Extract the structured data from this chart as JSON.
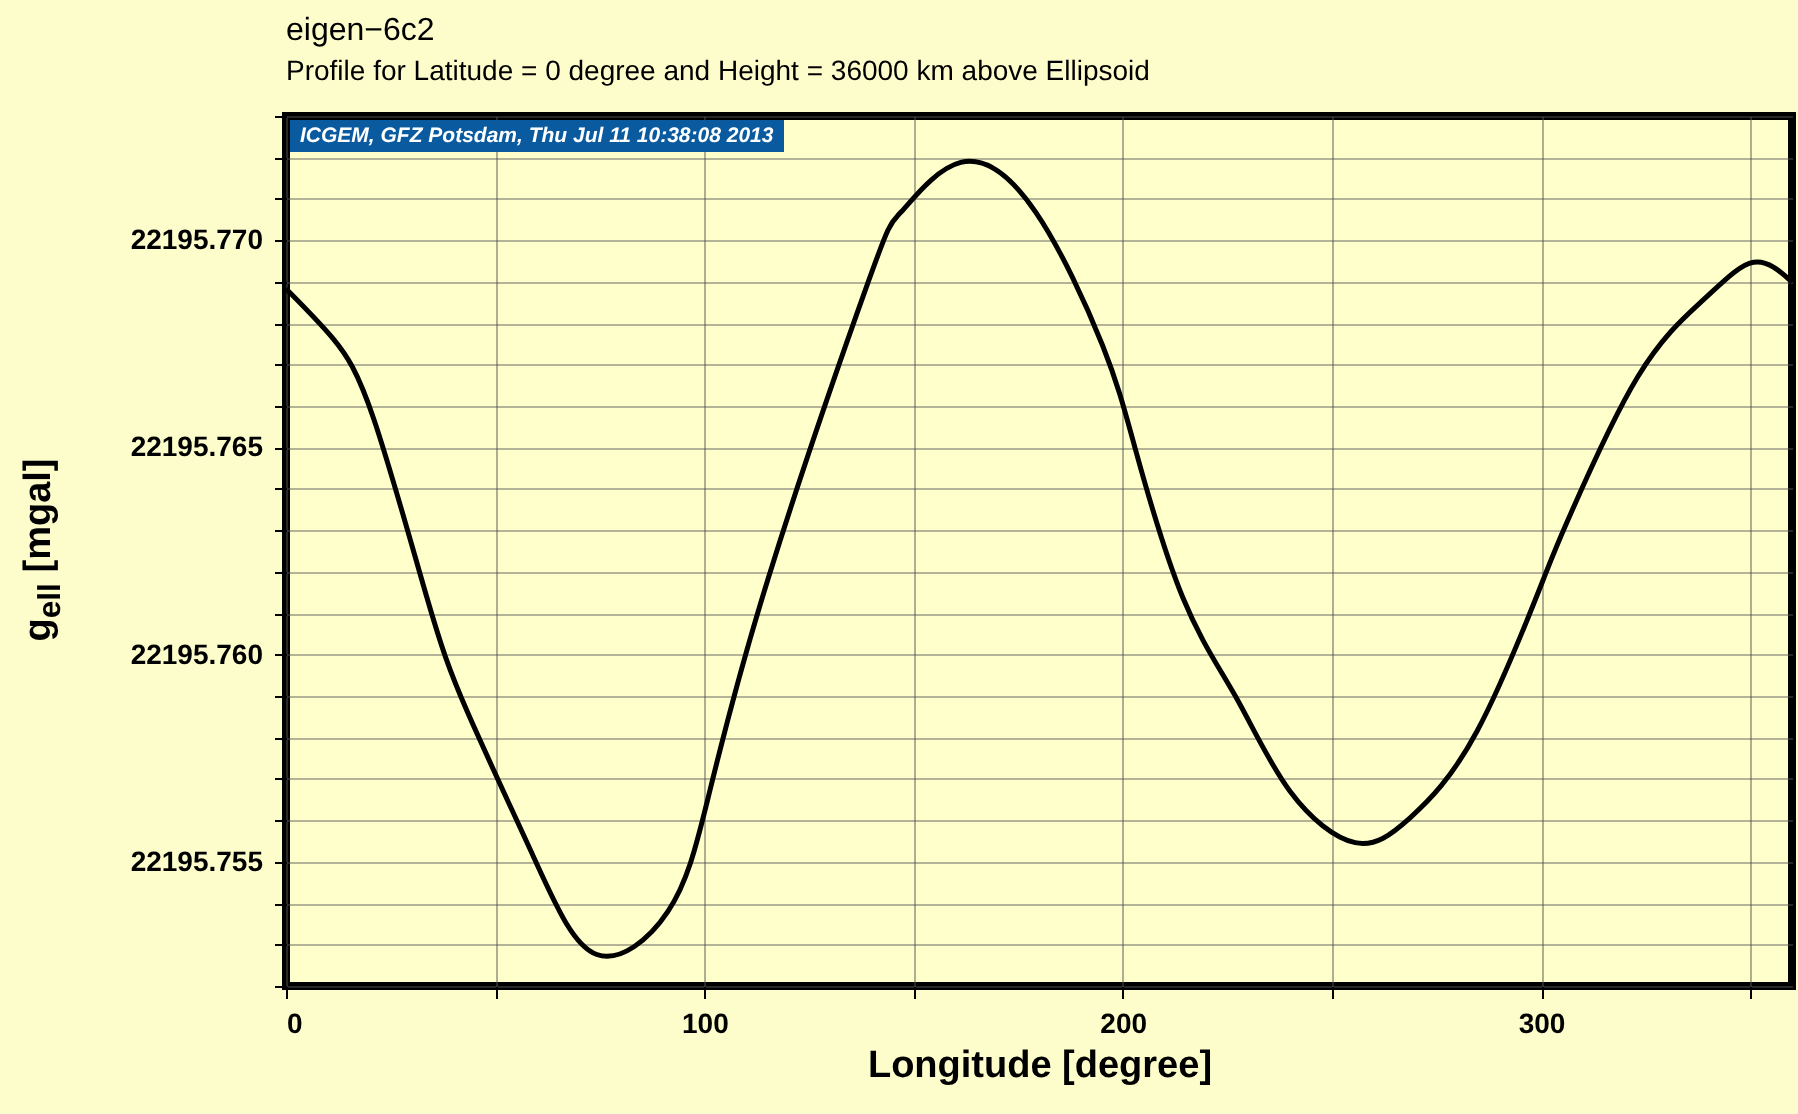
{
  "chart_data": {
    "type": "line",
    "title": "eigen−6c2",
    "subtitle": "Profile for Latitude = 0 degree and Height = 36000 km above Ellipsoid",
    "xlabel": "Longitude [degree]",
    "ylabel": "g$_{ell}$ [mgal]",
    "annotations": [
      "ICGEM, GFZ Potsdam, Thu Jul 11 10:38:08 2013"
    ],
    "x": [
      0,
      11.3,
      21,
      33.7,
      43.3,
      59.3,
      74.3,
      91.3,
      100.9,
      115.3,
      139.2,
      147.2,
      161.3,
      179.2,
      195.2,
      203.2,
      214.4,
      227.2,
      240,
      255.6,
      268.7,
      284.7,
      300.7,
      307.1,
      323.1,
      339.1,
      350.8,
      360
    ],
    "series": [
      {
        "color": "#000000",
        "values": [
          22195.76883,
          22195.76762,
          22195.76568,
          22195.76137,
          22195.75863,
          22195.75509,
          22195.75276,
          22195.7538,
          22195.75654,
          22195.76185,
          22195.769,
          22195.7707,
          22195.77188,
          22195.77068,
          22195.76746,
          22195.7649,
          22195.76137,
          22195.75895,
          22195.7567,
          22195.75546,
          22195.75606,
          22195.75815,
          22195.76185,
          22195.7634,
          22195.7667,
          22195.76859,
          22195.76947,
          22195.76899
        ]
      }
    ],
    "xlim": [
      0,
      360
    ],
    "xticks": [
      0,
      {
        "value": 50,
        "label": null
      },
      100,
      {
        "value": 150,
        "label": null
      },
      200,
      {
        "value": 250,
        "label": null
      },
      300,
      {
        "value": 350,
        "label": null
      }
    ],
    "ylim": [
      22195.752,
      22195.773
    ],
    "yticks": [
      {
        "value": 22195.752,
        "label": null
      },
      {
        "value": 22195.753,
        "label": null
      },
      {
        "value": 22195.754,
        "label": null
      },
      {
        "value": 22195.755,
        "label": "22195.755"
      },
      {
        "value": 22195.756,
        "label": null
      },
      {
        "value": 22195.757,
        "label": null
      },
      {
        "value": 22195.758,
        "label": null
      },
      {
        "value": 22195.759,
        "label": null
      },
      {
        "value": 22195.76,
        "label": "22195.760"
      },
      {
        "value": 22195.761,
        "label": null
      },
      {
        "value": 22195.762,
        "label": null
      },
      {
        "value": 22195.763,
        "label": null
      },
      {
        "value": 22195.764,
        "label": null
      },
      {
        "value": 22195.765,
        "label": "22195.765"
      },
      {
        "value": 22195.766,
        "label": null
      },
      {
        "value": 22195.767,
        "label": null
      },
      {
        "value": 22195.768,
        "label": null
      },
      {
        "value": 22195.769,
        "label": null
      },
      {
        "value": 22195.77,
        "label": "22195.770"
      },
      {
        "value": 22195.771,
        "label": null
      },
      {
        "value": 22195.772,
        "label": null
      },
      {
        "value": 22195.773,
        "label": null
      }
    ],
    "grid": true,
    "marker": "none",
    "line_style": "solid"
  }
}
